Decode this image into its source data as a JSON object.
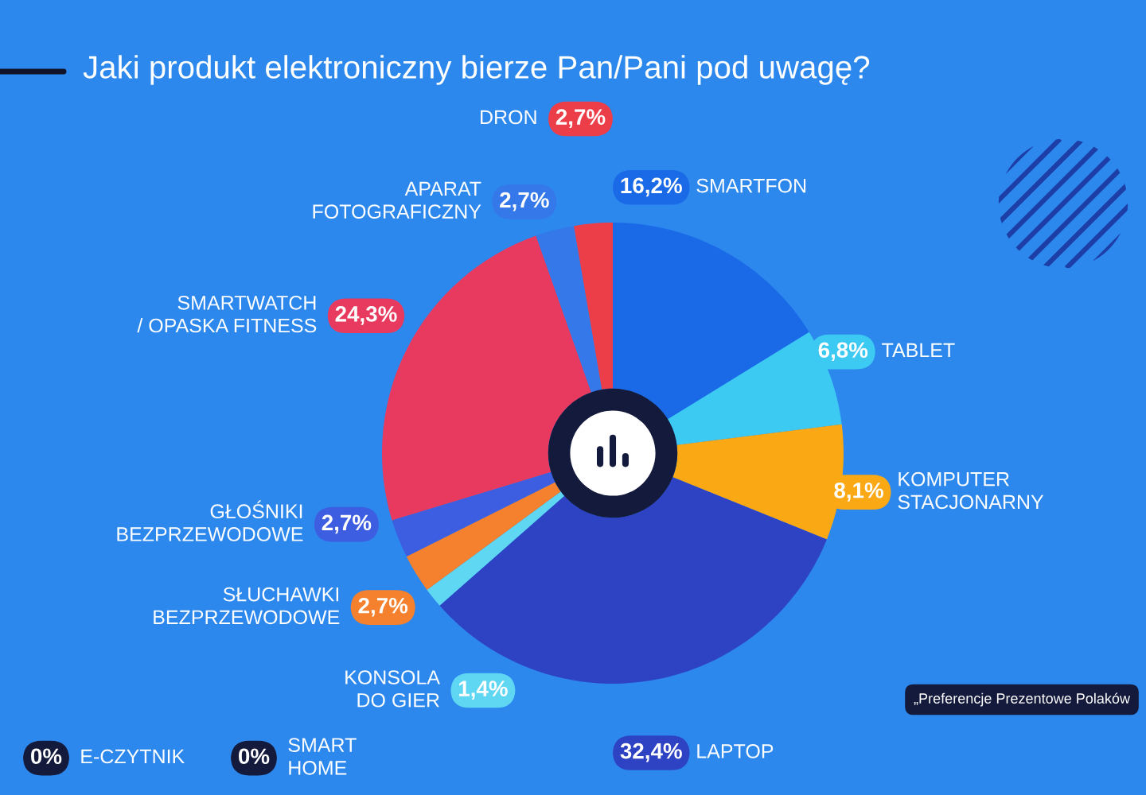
{
  "chart_data": {
    "type": "donut",
    "title": "Jaki produkt elektroniczny bierze Pan/Pani pod uwagę?",
    "categories": [
      "SMARTFON",
      "TABLET",
      "KOMPUTER\nSTACJONARNY",
      "LAPTOP",
      "KONSOLA\nDO GIER",
      "SŁUCHAWKI\nBEZPRZEWODOWE",
      "GŁOŚNIKI\nBEZPRZEWODOWE",
      "SMARTWATCH\n/ OPASKA FITNESS",
      "APARAT\nFOTOGRAFICZNY",
      "DRON",
      "E-CZYTNIK",
      "SMART\nHOME"
    ],
    "values": [
      16.2,
      6.8,
      8.1,
      32.4,
      1.4,
      2.7,
      2.7,
      24.3,
      2.7,
      2.7,
      0,
      0
    ],
    "value_labels": [
      "16,2%",
      "6,8%",
      "8,1%",
      "32,4%",
      "1,4%",
      "2,7%",
      "2,7%",
      "24,3%",
      "2,7%",
      "2,7%",
      "0%",
      "0%"
    ],
    "colors": [
      "#1a6ae8",
      "#3cc9f2",
      "#fba815",
      "#2e42c4",
      "#5fd6f2",
      "#f5802e",
      "#3d5ee0",
      "#e83a5e",
      "#3478ea",
      "#ec3e48",
      "#141a3c",
      "#141a3c"
    ],
    "legend": "left",
    "annotations": [
      "„Preferencje Prezentowe Polaków"
    ]
  }
}
